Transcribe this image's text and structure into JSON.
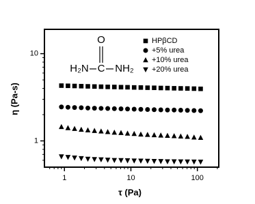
{
  "chart_data": {
    "type": "scatter",
    "xlabel": "τ (Pa)",
    "ylabel": "η (Pa-s)",
    "log_x": true,
    "log_y": true,
    "xlim": [
      0.5,
      210
    ],
    "ylim": [
      0.5,
      19
    ],
    "xticks": [
      1,
      10,
      100
    ],
    "yticks": [
      1,
      10
    ],
    "legend": "upper right",
    "annotations": [
      "O",
      "C",
      "H₂N",
      "NH₂"
    ],
    "x": [
      0.9,
      1.13,
      1.42,
      1.79,
      2.25,
      2.83,
      3.56,
      4.48,
      5.64,
      7.1,
      8.9,
      11.2,
      14.1,
      17.8,
      22.4,
      28.2,
      35.5,
      44.7,
      56.2,
      70.8,
      89.1,
      112
    ],
    "series": [
      {
        "name": "HPβCD",
        "color": "#000000",
        "marker": "square",
        "values": [
          4.3,
          4.28,
          4.26,
          4.24,
          4.22,
          4.2,
          4.18,
          4.16,
          4.15,
          4.13,
          4.12,
          4.1,
          4.09,
          4.07,
          4.06,
          4.04,
          4.03,
          4.01,
          4.0,
          3.99,
          3.97,
          3.95
        ]
      },
      {
        "name": "+5% urea",
        "color": "#000000",
        "marker": "circle",
        "values": [
          2.45,
          2.43,
          2.41,
          2.4,
          2.38,
          2.37,
          2.36,
          2.35,
          2.34,
          2.33,
          2.32,
          2.31,
          2.3,
          2.29,
          2.28,
          2.27,
          2.26,
          2.26,
          2.25,
          2.24,
          2.23,
          2.22
        ]
      },
      {
        "name": "+10% urea",
        "color": "#000000",
        "marker": "triangle-up",
        "values": [
          1.45,
          1.41,
          1.38,
          1.35,
          1.33,
          1.31,
          1.29,
          1.27,
          1.25,
          1.24,
          1.22,
          1.21,
          1.19,
          1.18,
          1.17,
          1.16,
          1.15,
          1.14,
          1.13,
          1.12,
          1.1,
          1.09
        ]
      },
      {
        "name": "+20% urea",
        "color": "#000000",
        "marker": "triangle-down",
        "values": [
          0.66,
          0.65,
          0.64,
          0.63,
          0.62,
          0.615,
          0.61,
          0.605,
          0.6,
          0.598,
          0.595,
          0.592,
          0.59,
          0.588,
          0.585,
          0.583,
          0.58,
          0.579,
          0.578,
          0.577,
          0.576,
          0.575
        ]
      }
    ]
  }
}
